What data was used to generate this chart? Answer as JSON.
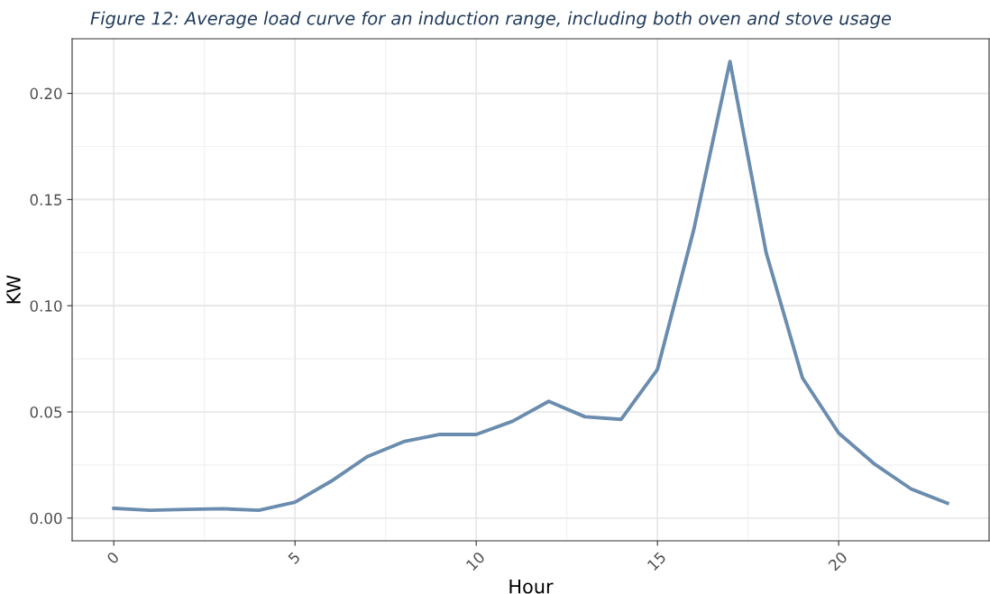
{
  "chart_data": {
    "type": "line",
    "title": "Figure 12: Average load curve for an induction range, including both oven and stove usage",
    "xlabel": "Hour",
    "ylabel": "KW",
    "x": [
      0,
      1,
      2,
      3,
      4,
      5,
      6,
      7,
      8,
      9,
      10,
      11,
      12,
      13,
      14,
      15,
      16,
      17,
      18,
      19,
      20,
      21,
      22,
      23
    ],
    "series": [
      {
        "color": "#6a8cae",
        "values": [
          0.0046,
          0.0037,
          0.0041,
          0.0044,
          0.0037,
          0.0075,
          0.0174,
          0.029,
          0.036,
          0.0394,
          0.0394,
          0.0456,
          0.055,
          0.0477,
          0.0465,
          0.07,
          0.1357,
          0.215,
          0.1249,
          0.066,
          0.04,
          0.0253,
          0.0137,
          0.007
        ]
      }
    ],
    "xlim": [
      -1.15,
      24.15
    ],
    "xticks": [
      0,
      5,
      10,
      15,
      20
    ],
    "ylim": [
      -0.0107,
      0.2257
    ],
    "yticks": [
      {
        "value": 0,
        "label": "0.00"
      },
      {
        "value": 0.05,
        "label": "0.05"
      },
      {
        "value": 0.1,
        "label": "0.10"
      },
      {
        "value": 0.15,
        "label": "0.15"
      },
      {
        "value": 0.2,
        "label": "0.20"
      }
    ],
    "grid": true,
    "marker": "none",
    "line_style": "solid"
  }
}
